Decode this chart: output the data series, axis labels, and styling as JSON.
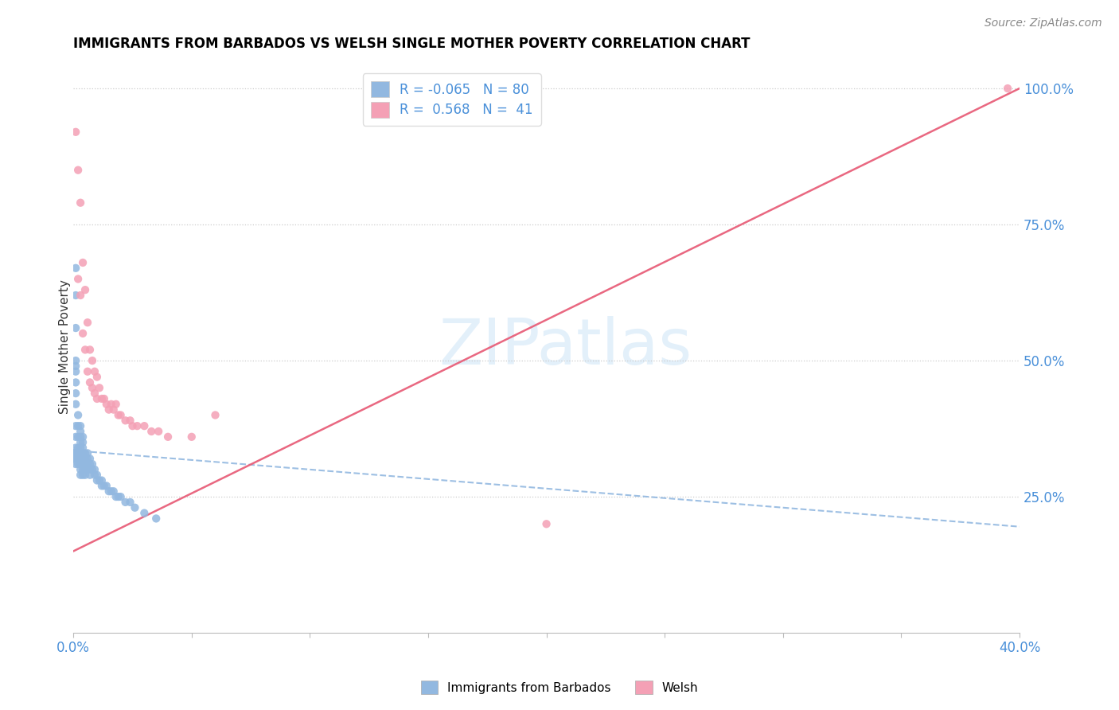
{
  "title": "IMMIGRANTS FROM BARBADOS VS WELSH SINGLE MOTHER POVERTY CORRELATION CHART",
  "source": "Source: ZipAtlas.com",
  "ylabel": "Single Mother Poverty",
  "right_yticks": [
    "100.0%",
    "75.0%",
    "50.0%",
    "25.0%"
  ],
  "right_ytick_vals": [
    1.0,
    0.75,
    0.5,
    0.25
  ],
  "barbados_R": "-0.065",
  "barbados_N": "80",
  "welsh_R": "0.568",
  "welsh_N": "41",
  "barbados_color": "#92b8e0",
  "welsh_color": "#f4a0b5",
  "barbados_line_color": "#92b8e0",
  "welsh_line_color": "#e8607a",
  "xlim": [
    0.0,
    0.4
  ],
  "ylim": [
    0.0,
    1.05
  ],
  "barbados_scatter_x": [
    0.0,
    0.0,
    0.0,
    0.0,
    0.001,
    0.001,
    0.001,
    0.001,
    0.001,
    0.001,
    0.001,
    0.001,
    0.001,
    0.001,
    0.001,
    0.001,
    0.001,
    0.001,
    0.001,
    0.002,
    0.002,
    0.002,
    0.002,
    0.002,
    0.002,
    0.002,
    0.003,
    0.003,
    0.003,
    0.003,
    0.003,
    0.003,
    0.003,
    0.003,
    0.003,
    0.003,
    0.003,
    0.004,
    0.004,
    0.004,
    0.004,
    0.004,
    0.004,
    0.004,
    0.004,
    0.005,
    0.005,
    0.005,
    0.005,
    0.005,
    0.006,
    0.006,
    0.006,
    0.006,
    0.007,
    0.007,
    0.007,
    0.007,
    0.008,
    0.008,
    0.009,
    0.009,
    0.01,
    0.01,
    0.011,
    0.012,
    0.012,
    0.013,
    0.014,
    0.015,
    0.016,
    0.017,
    0.018,
    0.019,
    0.02,
    0.022,
    0.024,
    0.026,
    0.03,
    0.035
  ],
  "barbados_scatter_y": [
    0.33,
    0.33,
    0.32,
    0.32,
    0.67,
    0.62,
    0.56,
    0.5,
    0.49,
    0.48,
    0.46,
    0.44,
    0.42,
    0.38,
    0.36,
    0.34,
    0.33,
    0.32,
    0.31,
    0.4,
    0.38,
    0.36,
    0.34,
    0.33,
    0.32,
    0.31,
    0.38,
    0.37,
    0.36,
    0.35,
    0.34,
    0.33,
    0.33,
    0.32,
    0.31,
    0.3,
    0.29,
    0.36,
    0.35,
    0.34,
    0.33,
    0.32,
    0.31,
    0.3,
    0.29,
    0.33,
    0.32,
    0.31,
    0.3,
    0.29,
    0.33,
    0.32,
    0.31,
    0.3,
    0.32,
    0.31,
    0.3,
    0.29,
    0.31,
    0.3,
    0.3,
    0.29,
    0.29,
    0.28,
    0.28,
    0.28,
    0.27,
    0.27,
    0.27,
    0.26,
    0.26,
    0.26,
    0.25,
    0.25,
    0.25,
    0.24,
    0.24,
    0.23,
    0.22,
    0.21
  ],
  "welsh_scatter_x": [
    0.001,
    0.002,
    0.002,
    0.003,
    0.003,
    0.004,
    0.004,
    0.005,
    0.005,
    0.006,
    0.006,
    0.007,
    0.007,
    0.008,
    0.008,
    0.009,
    0.009,
    0.01,
    0.01,
    0.011,
    0.012,
    0.013,
    0.014,
    0.015,
    0.016,
    0.017,
    0.018,
    0.019,
    0.02,
    0.022,
    0.024,
    0.025,
    0.027,
    0.03,
    0.033,
    0.036,
    0.04,
    0.05,
    0.06,
    0.2,
    0.395
  ],
  "welsh_scatter_y": [
    0.92,
    0.85,
    0.65,
    0.79,
    0.62,
    0.68,
    0.55,
    0.63,
    0.52,
    0.57,
    0.48,
    0.52,
    0.46,
    0.5,
    0.45,
    0.48,
    0.44,
    0.47,
    0.43,
    0.45,
    0.43,
    0.43,
    0.42,
    0.41,
    0.42,
    0.41,
    0.42,
    0.4,
    0.4,
    0.39,
    0.39,
    0.38,
    0.38,
    0.38,
    0.37,
    0.37,
    0.36,
    0.36,
    0.4,
    0.2,
    1.0
  ],
  "barbados_line_x": [
    0.0,
    0.4
  ],
  "barbados_line_y": [
    0.335,
    0.195
  ],
  "welsh_line_x": [
    0.0,
    0.4
  ],
  "welsh_line_y": [
    0.15,
    1.0
  ]
}
